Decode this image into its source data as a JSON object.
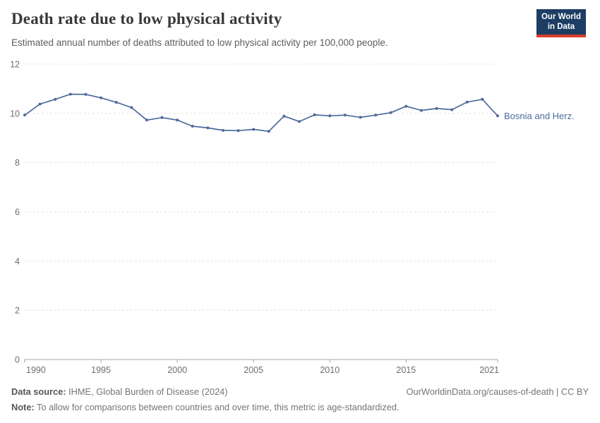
{
  "header": {
    "title": "Death rate due to low physical activity",
    "subtitle": "Estimated annual number of deaths attributed to low physical activity per 100,000 people.",
    "logo": {
      "line1": "Our World",
      "line2": "in Data",
      "bg_color": "#1d3d63",
      "bar_color": "#d73c2d"
    }
  },
  "chart_data": {
    "type": "line",
    "x": [
      1990,
      1991,
      1992,
      1993,
      1994,
      1995,
      1996,
      1997,
      1998,
      1999,
      2000,
      2001,
      2002,
      2003,
      2004,
      2005,
      2006,
      2007,
      2008,
      2009,
      2010,
      2011,
      2012,
      2013,
      2014,
      2015,
      2016,
      2017,
      2018,
      2019,
      2020,
      2021
    ],
    "series": [
      {
        "name": "Bosnia and Herz.",
        "color": "#4c6a9c",
        "values": [
          9.93,
          10.38,
          10.57,
          10.78,
          10.77,
          10.63,
          10.45,
          10.24,
          9.73,
          9.83,
          9.73,
          9.48,
          9.41,
          9.31,
          9.3,
          9.35,
          9.27,
          9.89,
          9.67,
          9.94,
          9.9,
          9.93,
          9.84,
          9.93,
          10.03,
          10.29,
          10.12,
          10.2,
          10.15,
          10.46,
          10.57,
          9.9
        ]
      }
    ],
    "title": "Death rate due to low physical activity",
    "xlabel": "",
    "ylabel": "",
    "ylim": [
      0,
      12
    ],
    "yticks": [
      0,
      2,
      4,
      6,
      8,
      10,
      12
    ],
    "xticks": [
      1990,
      1995,
      2000,
      2005,
      2010,
      2015,
      2021
    ],
    "grid": "horizontal-dashed",
    "legend_position": "end-of-line-label",
    "end_label": "Bosnia and Herz."
  },
  "footer": {
    "datasource_label": "Data source:",
    "datasource_value": " IHME, Global Burden of Disease (2024)",
    "link": "OurWorldinData.org/causes-of-death | CC BY",
    "note_label": "Note:",
    "note_value": " To allow for comparisons between countries and over time, this metric is age-standardized."
  }
}
